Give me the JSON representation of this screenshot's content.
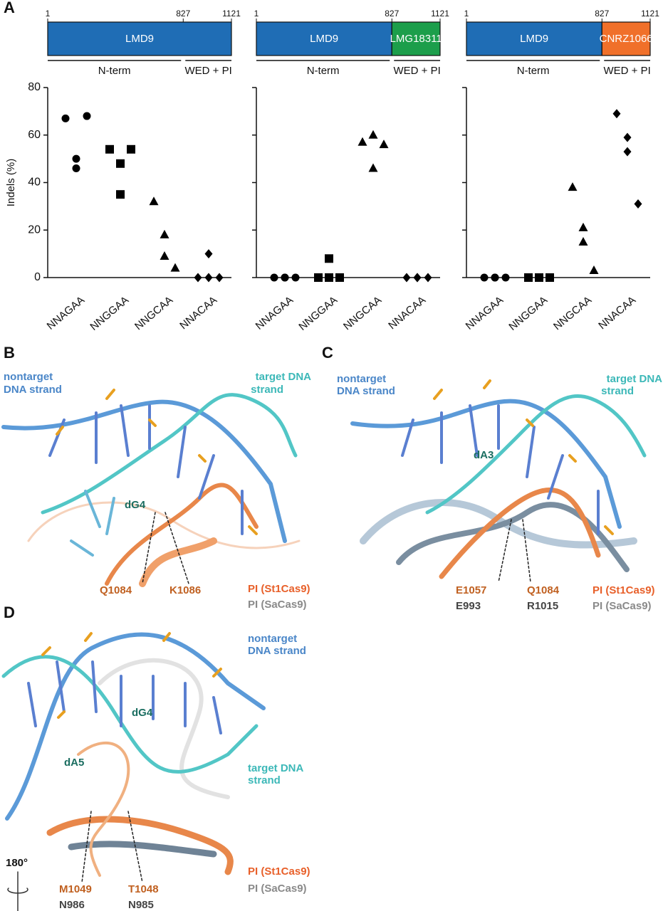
{
  "panel_labels": [
    "A",
    "B",
    "C",
    "D"
  ],
  "domain_bars": [
    {
      "positions": [
        1,
        827,
        1121
      ],
      "segments": [
        {
          "name": "LMD9",
          "color": "#1f6db5"
        }
      ],
      "regions": [
        "N-term",
        "WED + PI"
      ]
    },
    {
      "positions": [
        1,
        827,
        1121
      ],
      "segments": [
        {
          "name": "LMD9",
          "color": "#1f6db5"
        },
        {
          "name": "LMG18311",
          "color": "#1c9e4b"
        }
      ],
      "regions": [
        "N-term",
        "WED + PI"
      ]
    },
    {
      "positions": [
        1,
        827,
        1121
      ],
      "segments": [
        {
          "name": "LMD9",
          "color": "#1f6db5"
        },
        {
          "name": "CNRZ1066",
          "color": "#f0702a"
        }
      ],
      "regions": [
        "N-term",
        "WED + PI"
      ]
    }
  ],
  "chart_data": [
    {
      "type": "strip",
      "ylabel": "Indels (%)",
      "categories": [
        "NNAGAA",
        "NNGGAA",
        "NNGCAA",
        "NNACAA"
      ],
      "markers": [
        "circle",
        "square",
        "triangle",
        "diamond"
      ],
      "color": "#000000",
      "values": [
        [
          67,
          50,
          46,
          68
        ],
        [
          54,
          48,
          35,
          54
        ],
        [
          32,
          18,
          9,
          4
        ],
        [
          0,
          10,
          0,
          0
        ]
      ],
      "ylim": [
        0,
        80
      ],
      "yticks": [
        0,
        20,
        40,
        60,
        80
      ],
      "tick_labels": true
    },
    {
      "type": "strip",
      "categories": [
        "NNAGAA",
        "NNGGAA",
        "NNGCAA",
        "NNACAA"
      ],
      "markers": [
        "circle",
        "square",
        "triangle",
        "diamond"
      ],
      "color": "#000000",
      "values": [
        [
          0,
          0,
          0,
          0
        ],
        [
          0,
          8,
          0,
          0
        ],
        [
          57,
          46,
          60,
          56
        ],
        [
          0,
          0,
          0,
          0
        ]
      ],
      "ylim": [
        0,
        80
      ],
      "yticks": [
        0,
        20,
        40,
        60,
        80
      ],
      "tick_labels": false
    },
    {
      "type": "strip",
      "categories": [
        "NNAGAA",
        "NNGGAA",
        "NNGCAA",
        "NNACAA"
      ],
      "markers": [
        "circle",
        "square",
        "triangle",
        "diamond"
      ],
      "color": "#000000",
      "values": [
        [
          0,
          0,
          0,
          0
        ],
        [
          0,
          0,
          0,
          0
        ],
        [
          38,
          21,
          15,
          3
        ],
        [
          69,
          59,
          53,
          31
        ]
      ],
      "ylim": [
        0,
        80
      ],
      "yticks": [
        0,
        20,
        40,
        60,
        80
      ],
      "tick_labels": false
    }
  ],
  "structures": {
    "B": {
      "nontarget": [
        "nontarget",
        "DNA strand"
      ],
      "target": [
        "target DNA",
        "strand"
      ],
      "nucleotides": [
        "dG4"
      ],
      "residues_st1": [
        "Q1084",
        "K1086"
      ],
      "legend": [
        "PI (St1Cas9)",
        "PI (SaCas9)"
      ]
    },
    "C": {
      "nontarget": [
        "nontarget",
        "DNA strand"
      ],
      "target": [
        "target DNA",
        "strand"
      ],
      "nucleotides": [
        "dA3"
      ],
      "residues_st1": [
        "E1057",
        "Q1084"
      ],
      "residues_sa": [
        "E993",
        "R1015"
      ],
      "legend": [
        "PI (St1Cas9)",
        "PI (SaCas9)"
      ]
    },
    "D": {
      "nontarget": [
        "nontarget",
        "DNA strand"
      ],
      "target": [
        "target DNA",
        "strand"
      ],
      "nucleotides": [
        "dG4",
        "dA5"
      ],
      "residues_st1": [
        "M1049",
        "T1048"
      ],
      "residues_sa": [
        "N986",
        "N985"
      ],
      "legend": [
        "PI (St1Cas9)",
        "PI (SaCas9)"
      ],
      "rotation": "180°"
    }
  }
}
